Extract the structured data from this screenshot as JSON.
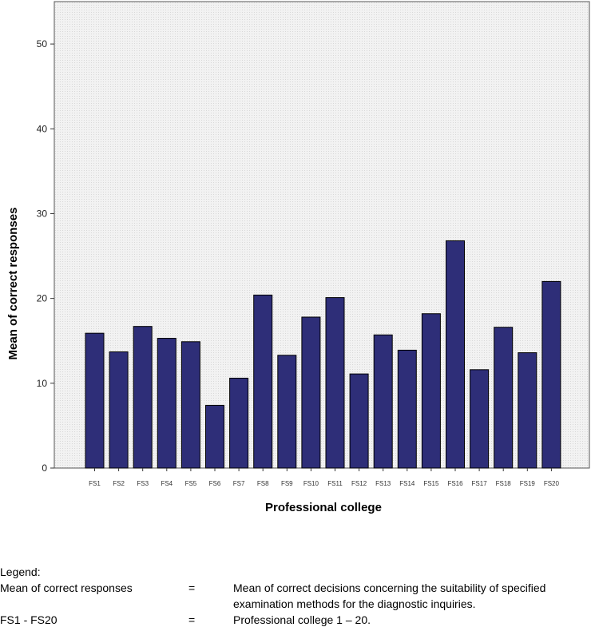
{
  "chart_data": {
    "type": "bar",
    "xlabel": "Professional college",
    "ylabel": "Mean of correct responses",
    "ylim": [
      0,
      55
    ],
    "yticks": [
      0,
      10,
      20,
      30,
      40,
      50
    ],
    "categories": [
      "FS1",
      "FS2",
      "FS3",
      "FS4",
      "FS5",
      "FS6",
      "FS7",
      "FS8",
      "FS9",
      "FS10",
      "FS11",
      "FS12",
      "FS13",
      "FS14",
      "FS15",
      "FS16",
      "FS17",
      "FS18",
      "FS19",
      "FS20"
    ],
    "values": [
      15.9,
      13.7,
      16.7,
      15.3,
      14.9,
      7.4,
      10.6,
      20.4,
      13.3,
      17.8,
      20.1,
      11.1,
      15.7,
      13.9,
      18.2,
      26.8,
      11.6,
      16.6,
      13.6,
      22.0
    ],
    "bar_color": "#2e2e78",
    "plot_background": "#efefef"
  },
  "legend": {
    "heading": "Legend:",
    "rows": [
      {
        "term": "Mean of correct responses",
        "sep": "=",
        "definition": "Mean of correct decisions concerning the suitability of specified examination methods for the diagnostic inquiries."
      },
      {
        "term": "FS1 - FS20",
        "sep": "=",
        "definition": "Professional college 1 – 20."
      }
    ]
  }
}
